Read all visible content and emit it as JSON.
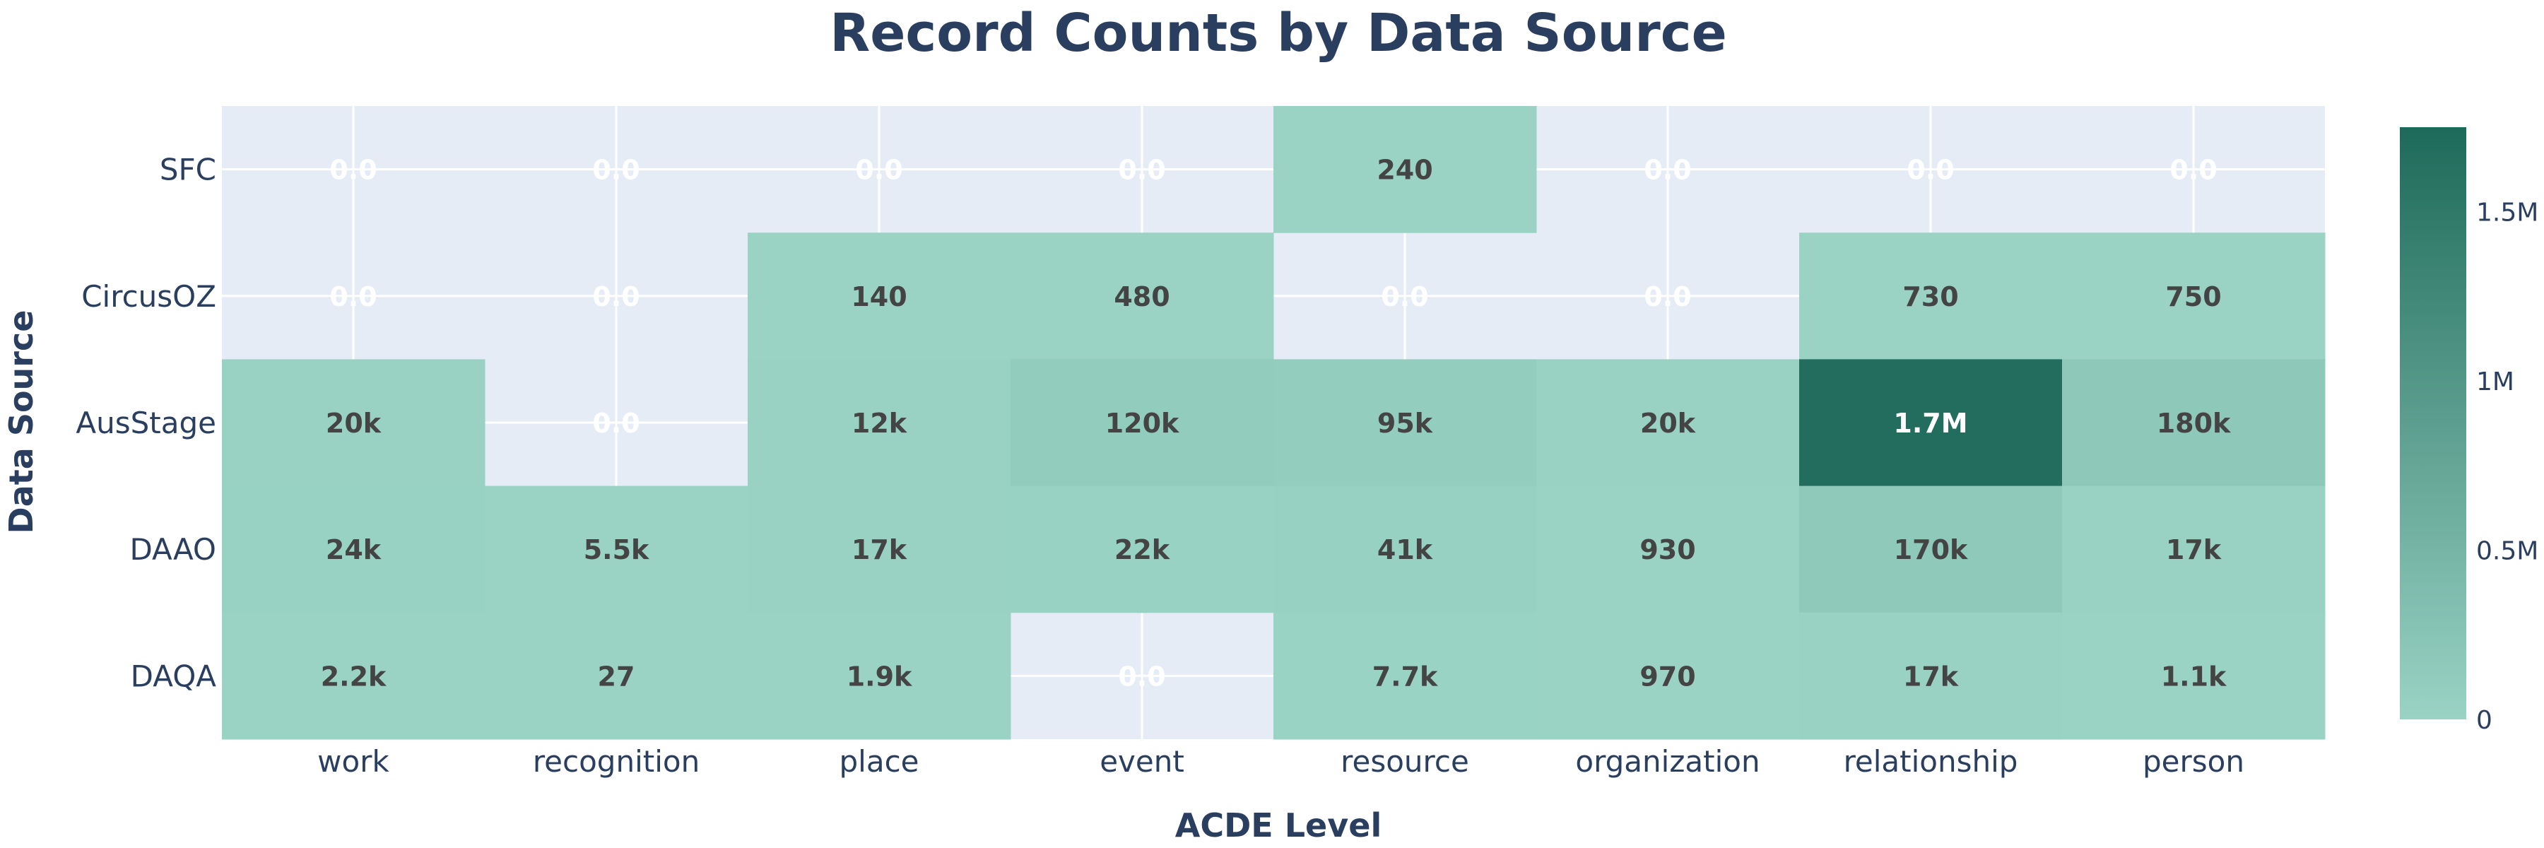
{
  "chart_data": {
    "type": "heatmap",
    "title": "Record Counts by Data Source",
    "xlabel": "ACDE Level",
    "ylabel": "Data Source",
    "x_categories": [
      "work",
      "recognition",
      "place",
      "event",
      "resource",
      "organization",
      "relationship",
      "person"
    ],
    "y_categories": [
      "SFC",
      "CircusOZ",
      "AusStage",
      "DAAO",
      "DAQA"
    ],
    "values": [
      [
        null,
        null,
        null,
        null,
        240,
        null,
        null,
        null
      ],
      [
        null,
        null,
        140,
        480,
        null,
        null,
        730,
        750
      ],
      [
        20000,
        null,
        12000,
        120000,
        95000,
        20000,
        1700000,
        180000
      ],
      [
        24000,
        5500,
        17000,
        22000,
        41000,
        930,
        170000,
        17000
      ],
      [
        2200,
        27,
        1900,
        null,
        7700,
        970,
        17000,
        1100
      ]
    ],
    "labels": [
      [
        "0.0",
        "0.0",
        "0.0",
        "0.0",
        "240",
        "0.0",
        "0.0",
        "0.0"
      ],
      [
        "0.0",
        "0.0",
        "140",
        "480",
        "0.0",
        "0.0",
        "730",
        "750"
      ],
      [
        "20k",
        "0.0",
        "12k",
        "120k",
        "95k",
        "20k",
        "1.7M",
        "180k"
      ],
      [
        "24k",
        "5.5k",
        "17k",
        "22k",
        "41k",
        "930",
        "170k",
        "17k"
      ],
      [
        "2.2k",
        "27",
        "1.9k",
        "0.0",
        "7.7k",
        "970",
        "17k",
        "1.1k"
      ]
    ],
    "zlim": [
      0,
      1750000
    ],
    "colorscale": [
      "#9ad3c4",
      "#1e6a5a"
    ],
    "colorbar": {
      "tickvals": [
        0,
        500000,
        1000000,
        1500000
      ],
      "ticktext": [
        "0",
        "0.5M",
        "1M",
        "1.5M"
      ]
    },
    "grid": true,
    "plot_background": "#e5ecf6",
    "grid_color": "#ffffff",
    "text_color": "#2a3f5f",
    "cell_text_dark": "#444444",
    "cell_text_light": "#ffffff"
  }
}
